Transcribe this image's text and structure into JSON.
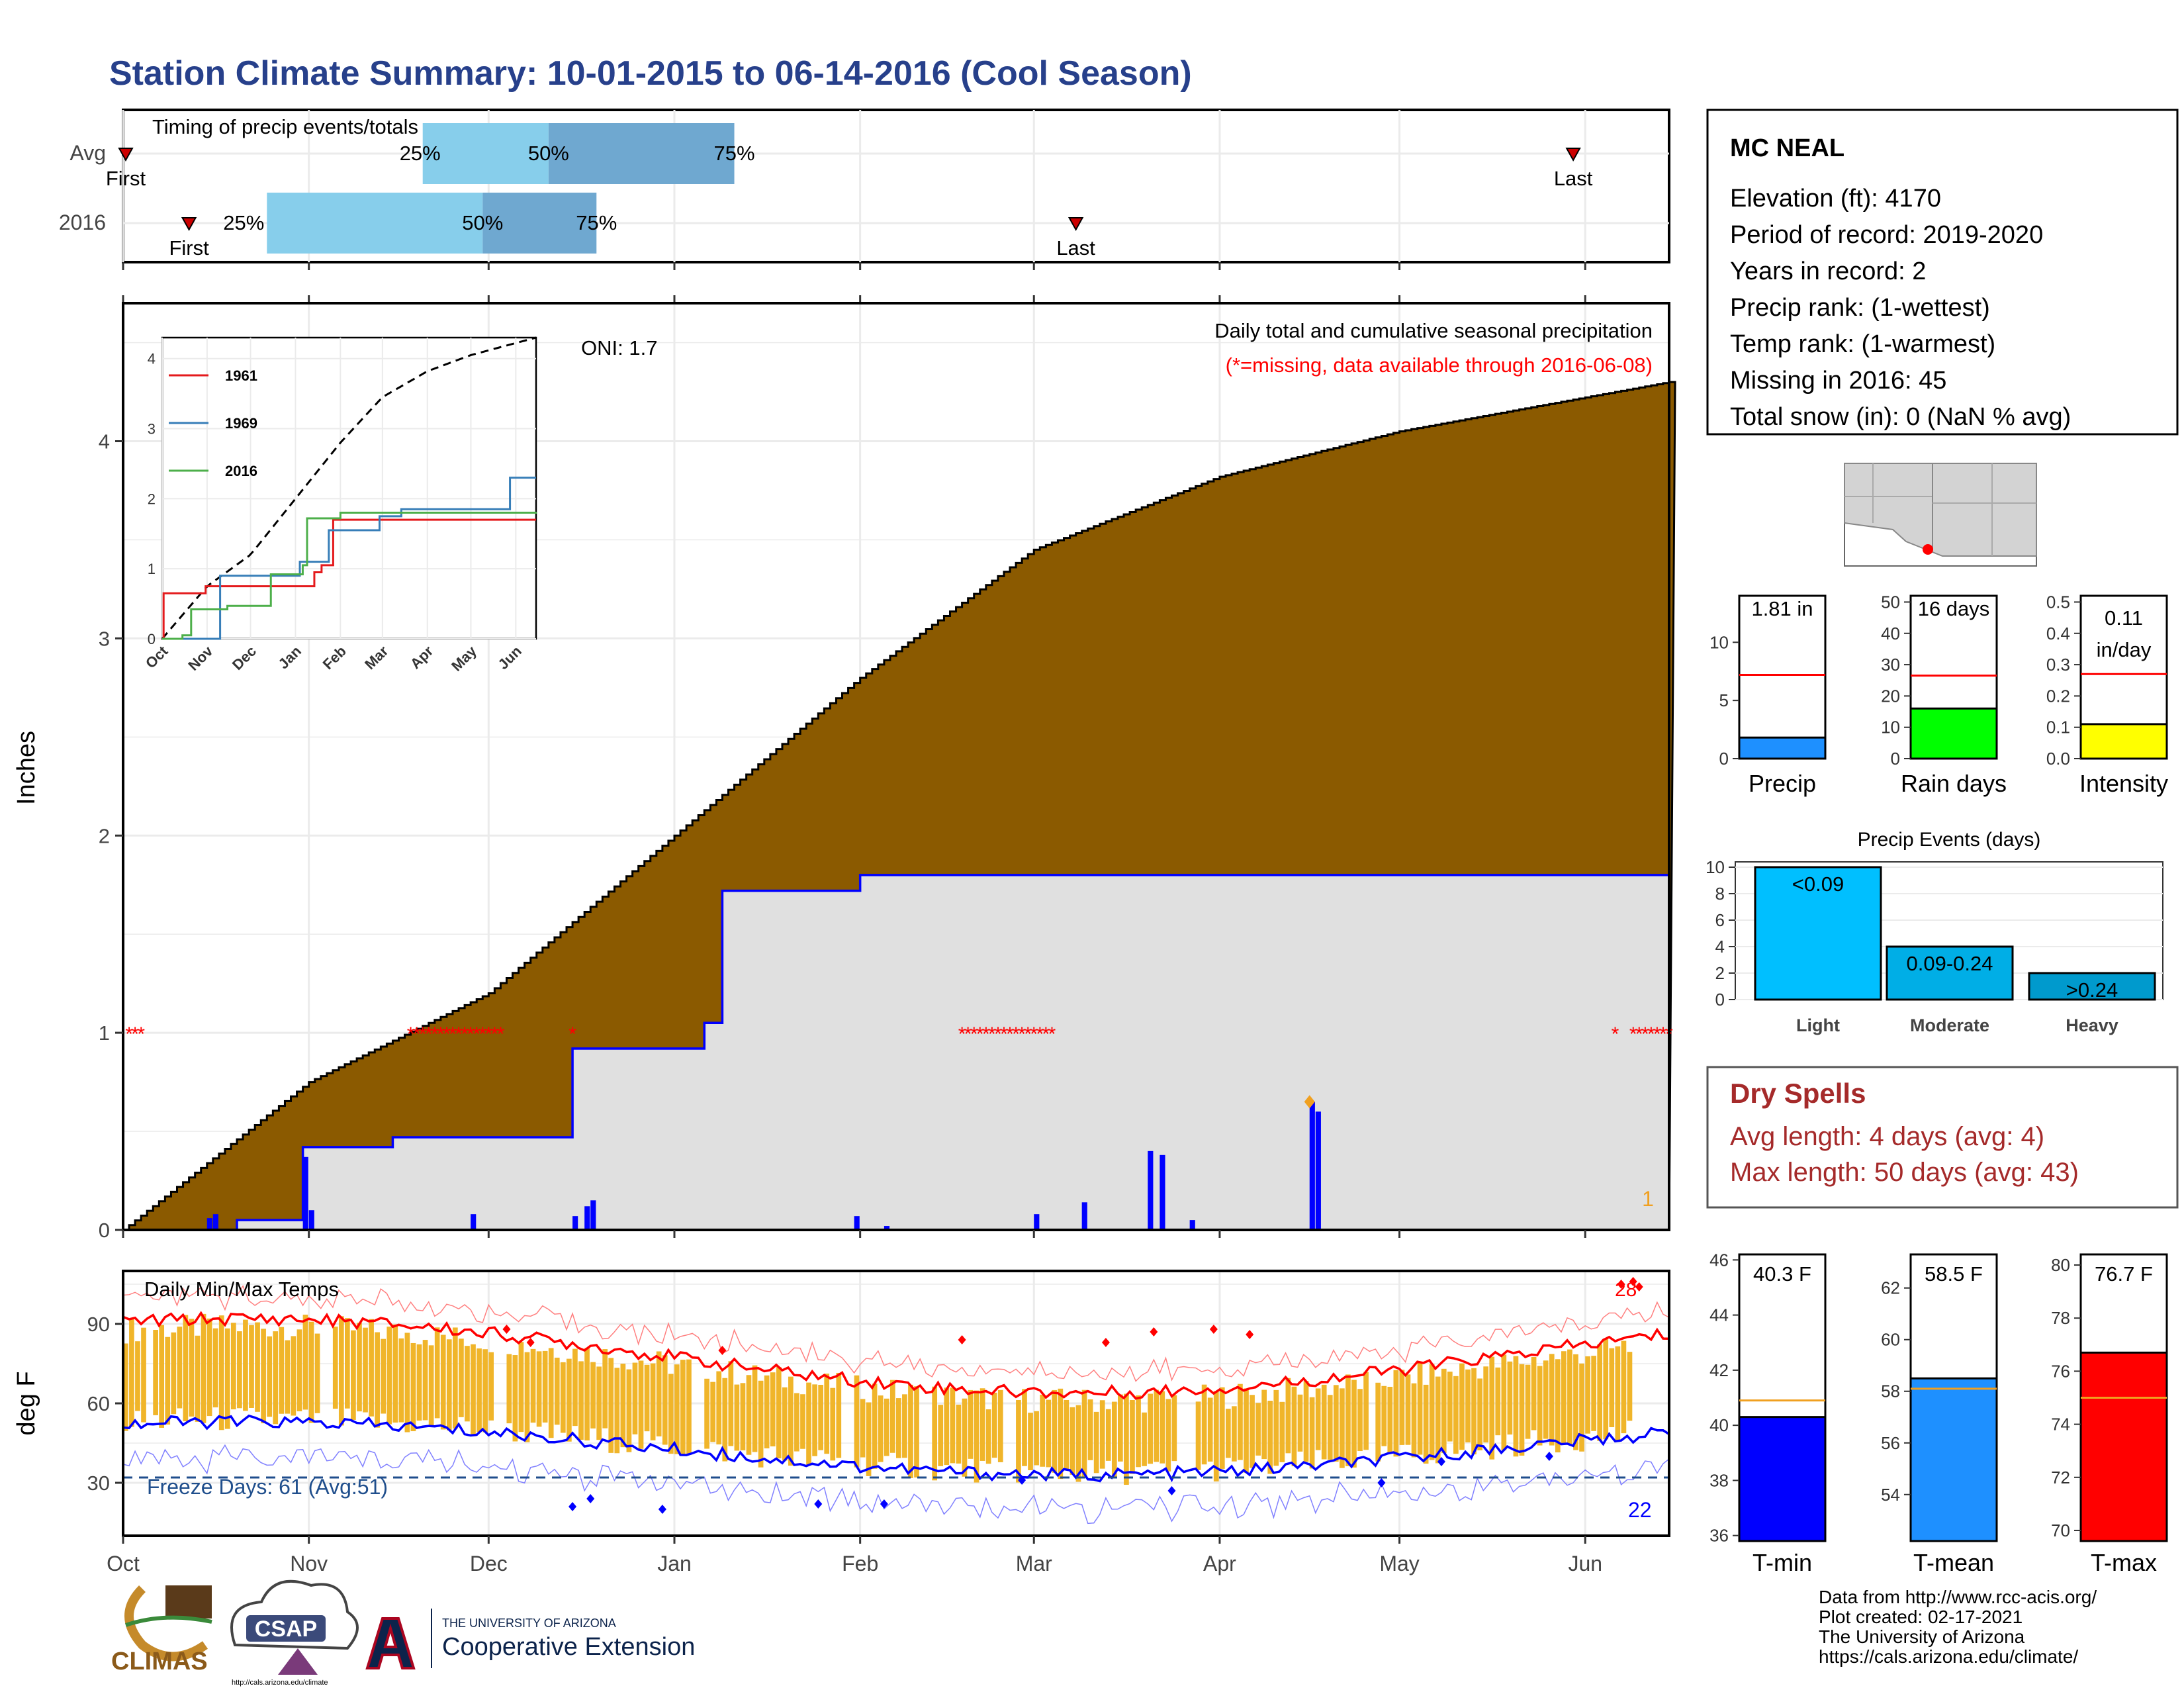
{
  "page_title": "Station Climate Summary: 10-01-2015 to 06-14-2016 (Cool Season)",
  "colors": {
    "title": "#27408b",
    "cum_fill": "#8b5a00",
    "season_fill": "#e0e0e0",
    "line_blue": "#0000ff",
    "dry_red": "#a52a2a",
    "orange": "#f0b52a"
  },
  "month_labels": [
    "Oct",
    "Nov",
    "Dec",
    "Jan",
    "Feb",
    "Mar",
    "Apr",
    "May",
    "Jun"
  ],
  "timing": {
    "title": "Timing of precip events/totals",
    "rows": [
      {
        "label": "Avg",
        "first_label": "First",
        "last_label": "Last",
        "p25": "25%",
        "p50": "50%",
        "p75": "75%",
        "first_day": 0,
        "last_day": 242,
        "q25_day": 50,
        "q50_day": 71,
        "q75_day": 102
      },
      {
        "label": "2016",
        "first_label": "First",
        "last_label": "Last",
        "p25": "25%",
        "p50": "50%",
        "p75": "75%",
        "first_day": 11,
        "last_day": 159,
        "q25_day": 24,
        "q50_day": 60,
        "q75_day": 79
      }
    ]
  },
  "main": {
    "ylabel": "Inches",
    "y_ticks": [
      "0",
      "1",
      "2",
      "3",
      "4"
    ],
    "oni_label": "ONI: 1.7",
    "top_note": "Daily total and cumulative seasonal precipitation",
    "missing_note": "(*=missing, data available through 2016-06-08)",
    "corner_count": "1",
    "missing_mark": "*"
  },
  "inset": {
    "y_ticks": [
      "0",
      "1",
      "2",
      "3",
      "4"
    ],
    "months": [
      "Oct",
      "Nov",
      "Dec",
      "Jan",
      "Feb",
      "Mar",
      "Apr",
      "May",
      "Jun"
    ],
    "legend": [
      "1961",
      "1969",
      "2016"
    ]
  },
  "temps": {
    "ylabel": "deg F",
    "title": "Daily Min/Max Temps",
    "y_ticks": [
      "30",
      "60",
      "90"
    ],
    "freeze_label": "Freeze Days: 61 (Avg:51)",
    "corner_low": "22",
    "corner_high": "28"
  },
  "station": {
    "name": "MC NEAL",
    "lines": [
      "Elevation (ft): 4170",
      "Period of record: 2019-2020",
      "Years in record: 2",
      "Precip rank:  (1-wettest)",
      "Temp rank:  (1-warmest)",
      "Missing in 2016: 45",
      "Total snow (in): 0 (NaN % avg)"
    ]
  },
  "mini_bars": [
    {
      "label": "Precip",
      "value_label": "1.81 in",
      "value": 1.81,
      "avg": 7.2,
      "ymax": 14,
      "ticks": [
        "0",
        "5",
        "10"
      ],
      "tick_vals": [
        0,
        5,
        10
      ],
      "color": "#1e90ff"
    },
    {
      "label": "Rain days",
      "value_label": "16 days",
      "value": 16,
      "avg": 26.5,
      "ymax": 52,
      "ticks": [
        "0",
        "10",
        "20",
        "30",
        "40",
        "50"
      ],
      "tick_vals": [
        0,
        10,
        20,
        30,
        40,
        50
      ],
      "color": "#00ff00"
    },
    {
      "label": "Intensity",
      "value_label": "0.11 in/day",
      "value": 0.11,
      "avg": 0.27,
      "ymax": 0.52,
      "ticks": [
        "0.0",
        "0.1",
        "0.2",
        "0.3",
        "0.4",
        "0.5"
      ],
      "tick_vals": [
        0,
        0.1,
        0.2,
        0.3,
        0.4,
        0.5
      ],
      "color": "#ffff00"
    }
  ],
  "events": {
    "title": "Precip Events (days)",
    "ticks": [
      "0",
      "2",
      "4",
      "6",
      "8",
      "10"
    ],
    "categories": [
      "Light",
      "Moderate",
      "Heavy"
    ],
    "values": [
      10,
      4,
      2
    ],
    "labels": [
      "<0.09",
      "0.09-0.24",
      ">0.24"
    ]
  },
  "dry": {
    "title": "Dry Spells",
    "avg_line": "Avg length: 4 days (avg: 4)",
    "max_line": "Max length: 50 days (avg: 43)"
  },
  "temp_bars": [
    {
      "label": "T-min",
      "value_label": "40.3 F",
      "value": 40.3,
      "avg": 40.9,
      "ymin": 35.8,
      "ymax": 46.2,
      "ticks": [
        "36",
        "38",
        "40",
        "42",
        "44",
        "46"
      ],
      "tick_vals": [
        36,
        38,
        40,
        42,
        44,
        46
      ],
      "color": "#0000ff"
    },
    {
      "label": "T-mean",
      "value_label": "58.5 F",
      "value": 58.5,
      "avg": 58.1,
      "ymin": 52.2,
      "ymax": 63.3,
      "ticks": [
        "54",
        "56",
        "58",
        "60",
        "62"
      ],
      "tick_vals": [
        54,
        56,
        58,
        60,
        62
      ],
      "color": "#1e90ff"
    },
    {
      "label": "T-max",
      "value_label": "76.7 F",
      "value": 76.7,
      "avg": 75.0,
      "ymin": 69.6,
      "ymax": 80.4,
      "ticks": [
        "70",
        "72",
        "74",
        "76",
        "78",
        "80"
      ],
      "tick_vals": [
        70,
        72,
        74,
        76,
        78,
        80
      ],
      "color": "#ff0000"
    }
  ],
  "footer": [
    "Data from http://www.rcc-acis.org/",
    "Plot created: 02-17-2021",
    "The University of Arizona",
    "https://cals.arizona.edu/climate/"
  ],
  "logos": {
    "climas": "CLIMAS",
    "csap": "CSAP",
    "csap_url": "http://cals.arizona.edu/climate",
    "ua_small": "THE UNIVERSITY OF ARIZONA",
    "ua_big": "Cooperative Extension"
  },
  "chart_data": {
    "type": "area",
    "ylabel": "Inches",
    "ylim": [
      0,
      4.7
    ],
    "season_total_x": [
      "Oct 1",
      "Oct 20",
      "Oct 31",
      "Nov 15",
      "Dec 15",
      "Jan 6",
      "Jan 9",
      "Feb 1",
      "Mar 1",
      "Jun 14"
    ],
    "season_total_y": [
      0,
      0.05,
      0.42,
      0.47,
      0.92,
      1.05,
      1.72,
      1.8,
      1.8,
      1.81
    ],
    "avg_cumulative_x": [
      "Oct 1",
      "Nov 1",
      "Dec 1",
      "Jan 1",
      "Feb 1",
      "Mar 1",
      "Apr 1",
      "May 1",
      "Jun 14"
    ],
    "avg_cumulative_y": [
      0,
      0.75,
      1.2,
      2.0,
      2.8,
      3.45,
      3.82,
      4.05,
      4.3
    ],
    "daily_precip_peak": 0.65,
    "temps_ylim": [
      10,
      110
    ],
    "freeze_threshold": 32
  }
}
